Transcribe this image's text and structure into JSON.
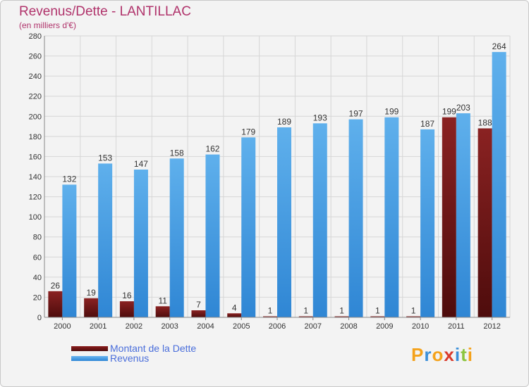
{
  "chart_data": {
    "type": "bar",
    "title": "Revenus/Dette - LANTILLAC",
    "subtitle": "(en milliers d'€)",
    "categories": [
      "2000",
      "2001",
      "2002",
      "2003",
      "2004",
      "2005",
      "2006",
      "2007",
      "2008",
      "2009",
      "2010",
      "2011",
      "2012"
    ],
    "series": [
      {
        "name": "Montant de la Dette",
        "color": "#6e1414",
        "values": [
          26,
          19,
          16,
          11,
          7,
          4,
          1,
          1,
          1,
          1,
          1,
          199,
          188
        ]
      },
      {
        "name": "Revenus",
        "color": "#3f97e0",
        "values": [
          132,
          153,
          147,
          158,
          162,
          179,
          189,
          193,
          197,
          199,
          187,
          203,
          264
        ]
      }
    ],
    "ylim": [
      0,
      280
    ],
    "yticks": [
      "0",
      "20",
      "40",
      "60",
      "80",
      "100",
      "120",
      "140",
      "160",
      "180",
      "200",
      "220",
      "240",
      "260",
      "280"
    ],
    "grid": true,
    "legend": "bottom-left"
  },
  "logo": {
    "text": "Proxiti",
    "letters": [
      "P",
      "r",
      "o",
      "x",
      "i",
      "t",
      "i"
    ],
    "colors": [
      "#f4a21b",
      "#3a8fd9",
      "#f4a21b",
      "#d93a2b",
      "#3a8fd9",
      "#8bc53f",
      "#f4a21b"
    ]
  }
}
